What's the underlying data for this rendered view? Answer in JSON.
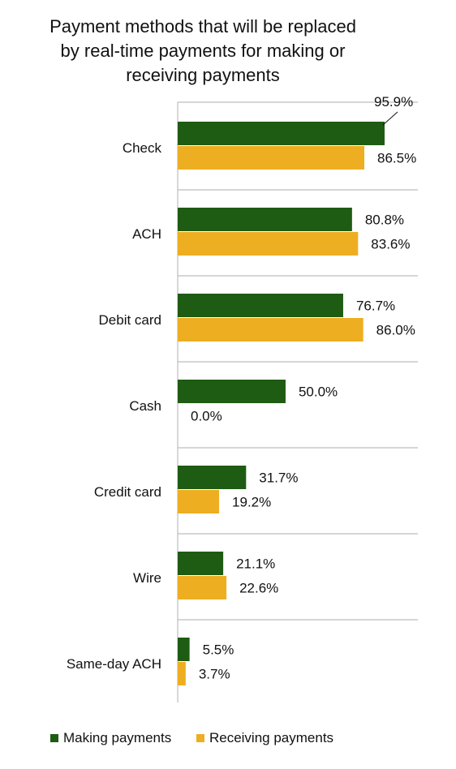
{
  "chart_data": {
    "type": "bar",
    "orientation": "horizontal",
    "title": "Payment methods that will be replaced by real-time payments for making or receiving payments",
    "title_lines": [
      "Payment methods that will be replaced",
      "by real-time payments for making or",
      "receiving payments"
    ],
    "categories": [
      "Check",
      "ACH",
      "Debit card",
      "Cash",
      "Credit card",
      "Wire",
      "Same-day ACH"
    ],
    "series": [
      {
        "name": "Making payments",
        "color": "#1e5b13",
        "values": [
          95.9,
          80.8,
          76.7,
          50.0,
          31.7,
          21.1,
          5.5
        ],
        "labels": [
          "95.9%",
          "80.8%",
          "76.7%",
          "50.0%",
          "31.7%",
          "21.1%",
          "5.5%"
        ]
      },
      {
        "name": "Receiving payments",
        "color": "#eeae22",
        "values": [
          86.5,
          83.6,
          86.0,
          0.0,
          19.2,
          22.6,
          3.7
        ],
        "labels": [
          "86.5%",
          "83.6%",
          "86.0%",
          "0.0%",
          "19.2%",
          "22.6%",
          "3.7%"
        ]
      }
    ],
    "xlim": [
      0,
      100
    ],
    "grid": "horizontal separators between categories",
    "legend_position": "bottom",
    "data_labels": true
  }
}
